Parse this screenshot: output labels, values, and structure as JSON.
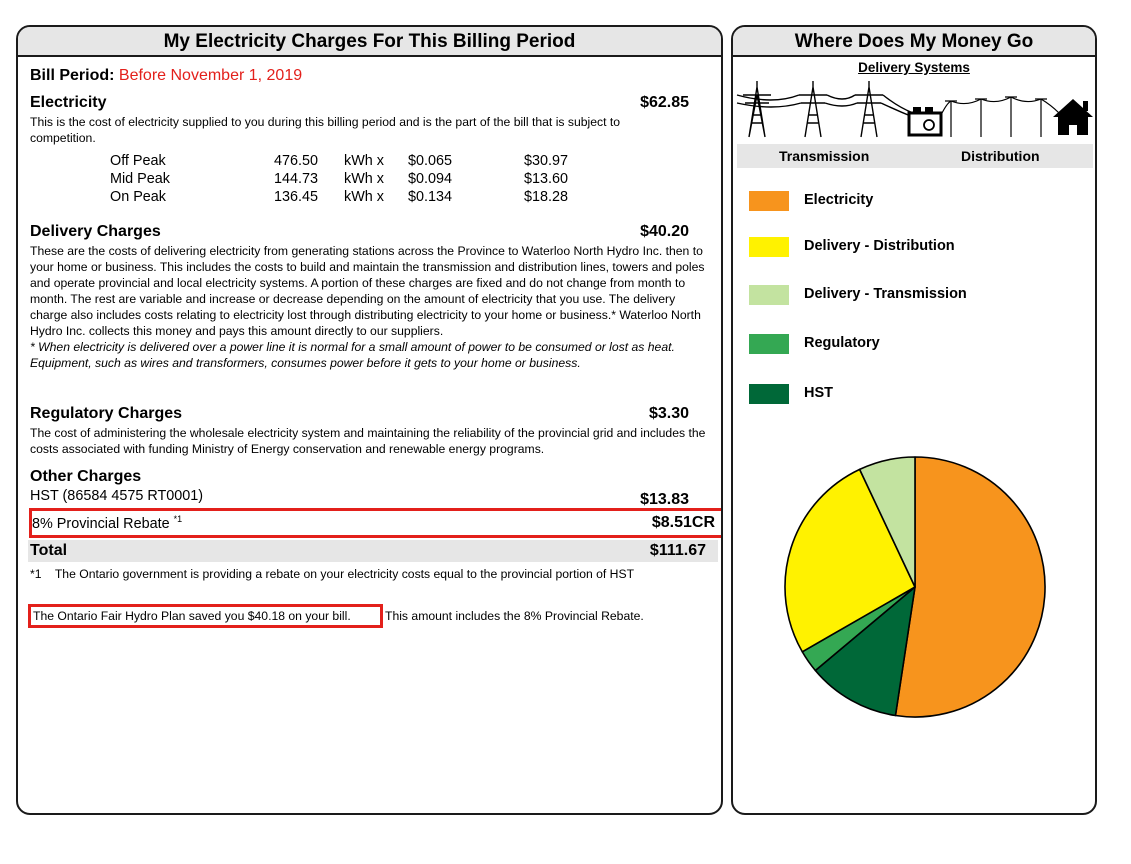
{
  "left_panel": {
    "title": "My Electricity Charges For This Billing Period",
    "bill_period_label": "Bill Period:",
    "bill_period_value": "Before November 1, 2019",
    "electricity": {
      "title": "Electricity",
      "amount": "$62.85",
      "desc": "This is the cost of electricity supplied to you during this billing period and is the part of the bill that is subject to competition.",
      "usage": [
        {
          "period": "Off Peak",
          "kwh": "476.50",
          "unit": "kWh  x",
          "rate": "$0.065",
          "cost": "$30.97"
        },
        {
          "period": "Mid Peak",
          "kwh": "144.73",
          "unit": "kWh  x",
          "rate": "$0.094",
          "cost": "$13.60"
        },
        {
          "period": "On Peak",
          "kwh": "136.45",
          "unit": "kWh  x",
          "rate": "$0.134",
          "cost": "$18.28"
        }
      ]
    },
    "delivery": {
      "title": "Delivery Charges",
      "amount": "$40.20",
      "desc": "These are the costs of delivering electricity from generating stations across the Province to Waterloo North Hydro Inc. then to your home or business. This includes the costs to build and maintain the transmission and distribution lines, towers and poles and operate provincial and local electricity systems. A portion of these charges are fixed and do not change from month to month. The rest are variable and increase or decrease depending on the amount of electricity that you use. The delivery charge also includes costs relating to electricity lost through distributing electricity to your home or business.* Waterloo North Hydro Inc. collects this money and pays this amount directly to our suppliers.",
      "note": "* When electricity is delivered over a power line it is normal for a small amount of power to be consumed or lost as heat. Equipment, such as wires and transformers, consumes power before it gets to your home or business."
    },
    "regulatory": {
      "title": "Regulatory Charges",
      "amount": "$3.30",
      "desc": "The cost of administering the wholesale electricity system and maintaining the reliability of the provincial grid and includes the costs associated with funding Ministry of Energy conservation and renewable energy programs."
    },
    "other": {
      "title": "Other Charges",
      "hst_label": "HST (86584 4575 RT0001)",
      "hst_amount": "$13.83",
      "rebate_label": "8% Provincial Rebate",
      "rebate_sup": "*1",
      "rebate_amount": "$8.51CR"
    },
    "total": {
      "label": "Total",
      "amount": "$111.67"
    },
    "footnote_marker": "*1",
    "footnote_text": "The Ontario government is providing a rebate on your electricity costs equal to the provincial portion of HST",
    "savings_boxed": "The Ontario Fair Hydro Plan saved you $40.18 on your bill.",
    "savings_rest": "This amount includes the 8% Provincial Rebate."
  },
  "right_panel": {
    "title": "Where Does My Money Go",
    "diagram_title": "Delivery Systems",
    "transmission_label": "Transmission",
    "distribution_label": "Distribution",
    "icons": [
      "transmission-tower-icon",
      "transformer-icon",
      "utility-pole-icon",
      "house-icon"
    ],
    "legend": [
      {
        "label": "Electricity",
        "color": "#f7941d"
      },
      {
        "label": "Delivery - Distribution",
        "color": "#fff200"
      },
      {
        "label": "Delivery - Transmission",
        "color": "#c3e3a0"
      },
      {
        "label": "Regulatory",
        "color": "#34a853"
      },
      {
        "label": "HST",
        "color": "#006838"
      }
    ]
  },
  "chart_data": {
    "type": "pie",
    "slices": [
      {
        "label": "Electricity",
        "value": 52.4,
        "color": "#f7941d"
      },
      {
        "label": "HST",
        "value": 11.5,
        "color": "#006838"
      },
      {
        "label": "Regulatory",
        "value": 2.8,
        "color": "#34a853"
      },
      {
        "label": "Delivery - Distribution",
        "value": 26.3,
        "color": "#fff200"
      },
      {
        "label": "Delivery - Transmission",
        "value": 7.0,
        "color": "#c3e3a0"
      }
    ],
    "start": "12 o'clock",
    "direction": "clockwise"
  }
}
